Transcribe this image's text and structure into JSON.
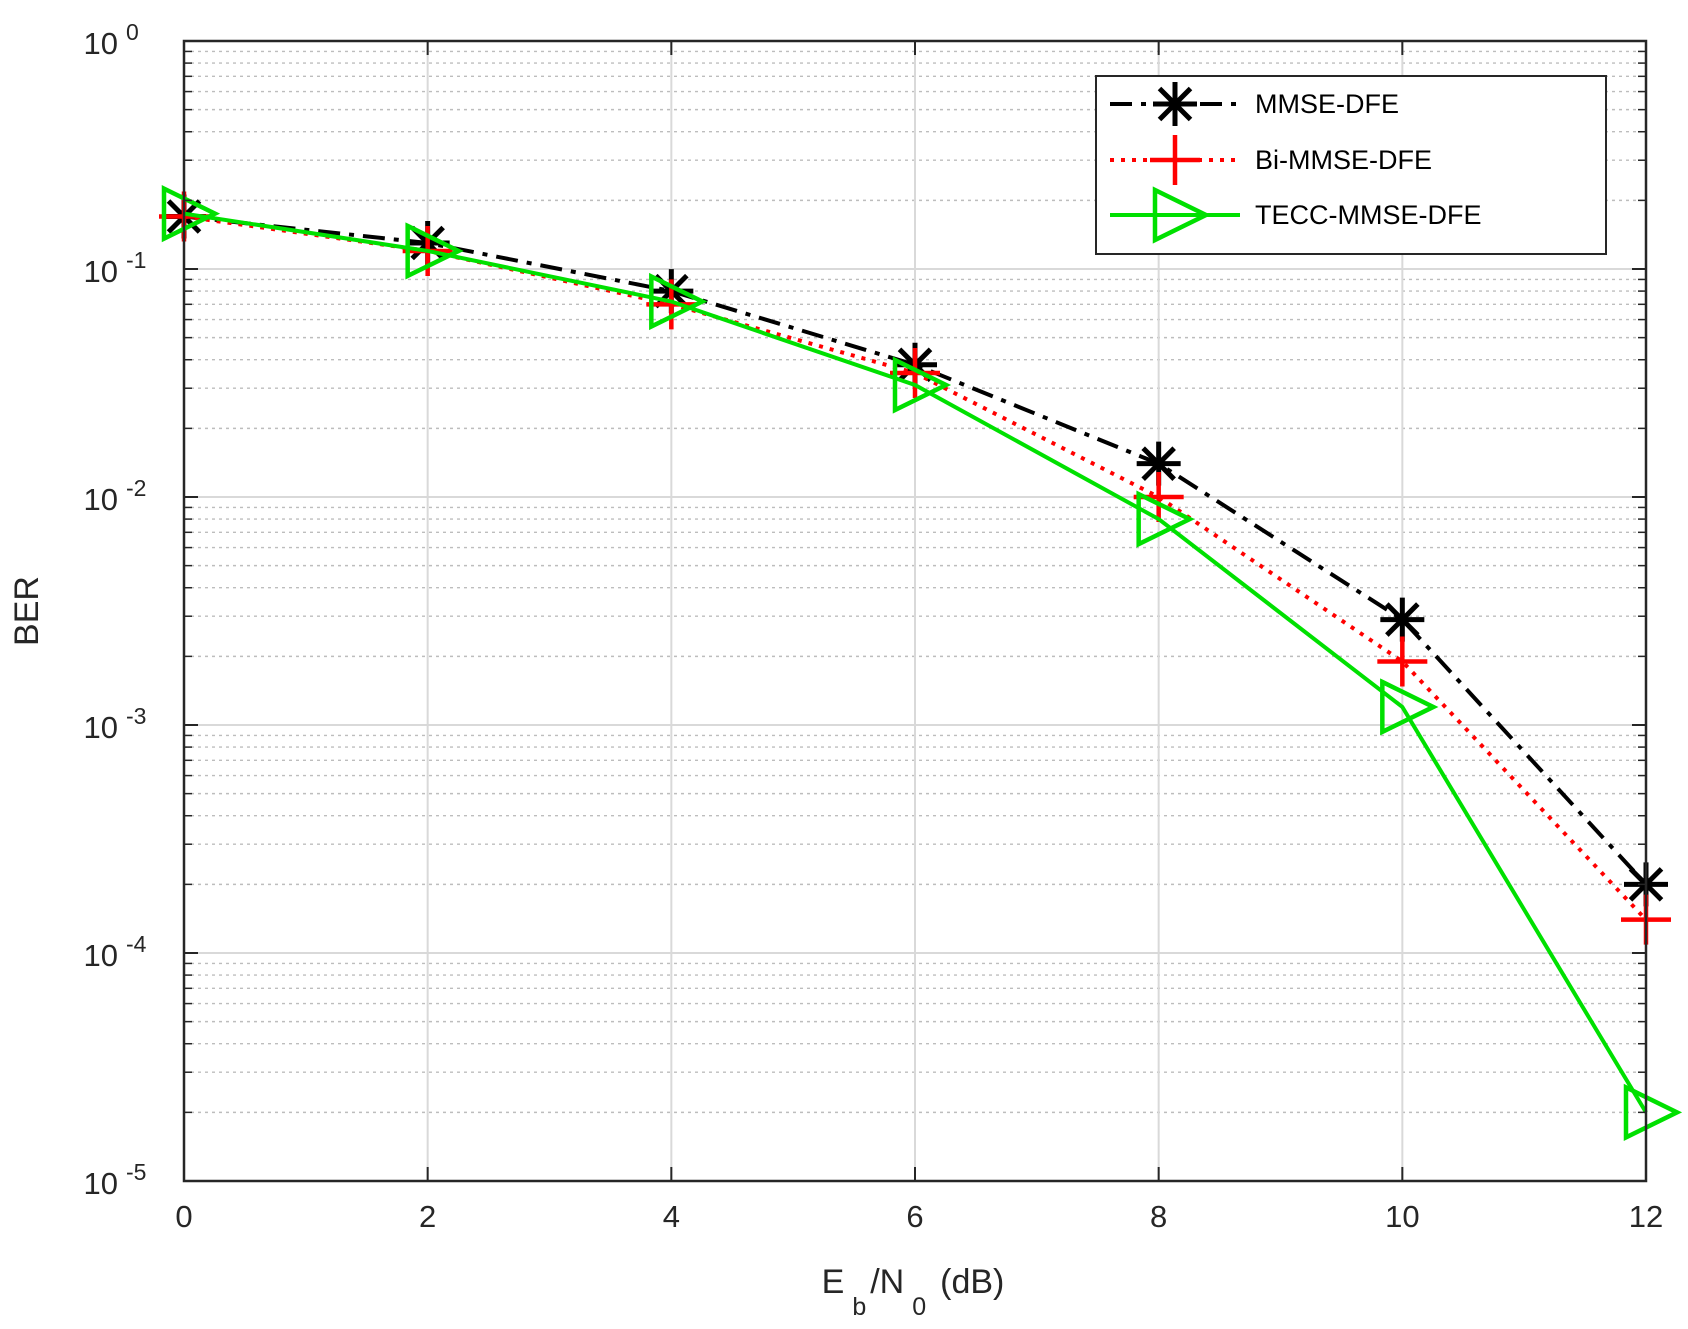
{
  "chart_data": {
    "type": "line",
    "title": "",
    "xlabel": {
      "main": "E",
      "sub_b": "b",
      "mid": "/N",
      "sub_0": "0",
      "unit": "(dB)"
    },
    "ylabel": "BER",
    "xlim": [
      0,
      12
    ],
    "ylim": [
      1e-05,
      1
    ],
    "yscale": "log",
    "grid": true,
    "minor_grid": true,
    "legend_position": "top-right",
    "x_ticks": [
      0,
      2,
      4,
      6,
      8,
      10,
      12
    ],
    "x_tick_labels": [
      "0",
      "2",
      "4",
      "6",
      "8",
      "10",
      "12"
    ],
    "y_ticks": [
      {
        "base": "10",
        "exp": "0",
        "value": 1
      },
      {
        "base": "10",
        "exp": "-1",
        "value": 0.1
      },
      {
        "base": "10",
        "exp": "-2",
        "value": 0.01
      },
      {
        "base": "10",
        "exp": "-3",
        "value": 0.001
      },
      {
        "base": "10",
        "exp": "-4",
        "value": 0.0001
      },
      {
        "base": "10",
        "exp": "-5",
        "value": 1e-05
      }
    ],
    "x": [
      0,
      2,
      4,
      6,
      8,
      10,
      12
    ],
    "series": [
      {
        "name": "MMSE-DFE",
        "values": [
          0.17,
          0.13,
          0.08,
          0.038,
          0.014,
          0.0029,
          0.0002
        ],
        "color": "#000000",
        "line": "dashdot",
        "marker": "asterisk"
      },
      {
        "name": "Bi-MMSE-DFE",
        "values": [
          0.17,
          0.12,
          0.07,
          0.035,
          0.01,
          0.0019,
          0.00014
        ],
        "color": "#ff0000",
        "line": "dotted",
        "marker": "plus"
      },
      {
        "name": "TECC-MMSE-DFE",
        "values": [
          0.175,
          0.12,
          0.072,
          0.031,
          0.008,
          0.0012,
          2e-05
        ],
        "color": "#00e000",
        "line": "solid",
        "marker": "triangle-right"
      }
    ]
  }
}
